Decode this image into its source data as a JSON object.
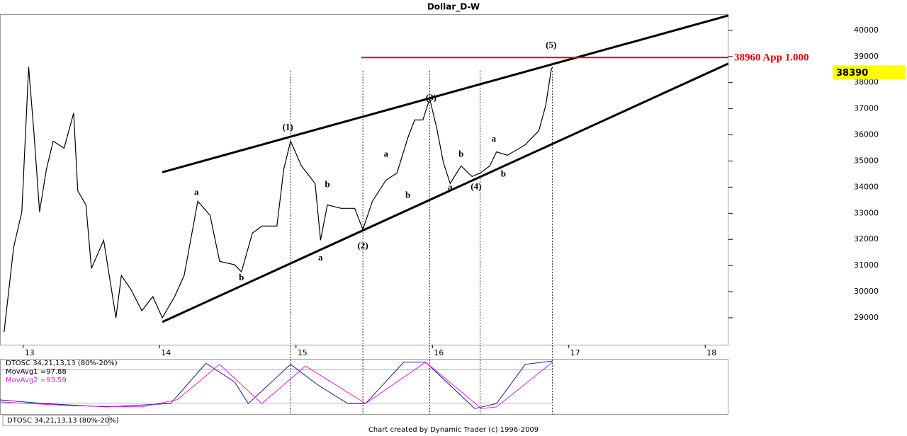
{
  "chart_data": [
    {
      "type": "line",
      "title": "Dollar_D-W",
      "x": [
        12.86,
        12.93,
        12.99,
        13.04,
        13.08,
        13.12,
        13.17,
        13.22,
        13.3,
        13.37,
        13.4,
        13.46,
        13.5,
        13.59,
        13.68,
        13.72,
        13.79,
        13.87,
        13.95,
        14.02,
        14.11,
        14.18,
        14.28,
        14.37,
        14.44,
        14.55,
        14.6,
        14.68,
        14.75,
        14.86,
        14.91,
        14.96,
        15.04,
        15.14,
        15.18,
        15.23,
        15.33,
        15.43,
        15.49,
        15.56,
        15.66,
        15.74,
        15.82,
        15.87,
        15.93,
        15.98,
        16.03,
        16.08,
        16.13,
        16.21,
        16.29,
        16.35,
        16.42,
        16.47,
        16.55,
        16.68,
        16.78,
        16.83,
        16.87,
        16.88
      ],
      "values": [
        28460,
        31700,
        33050,
        38600,
        36000,
        33050,
        34680,
        35760,
        35490,
        36840,
        33860,
        33320,
        30890,
        31970,
        29000,
        30620,
        30080,
        29270,
        29810,
        29000,
        29810,
        30620,
        33460,
        32920,
        31160,
        31030,
        30760,
        32240,
        32510,
        32510,
        34680,
        35760,
        34810,
        34140,
        31970,
        33320,
        33190,
        33190,
        32380,
        33460,
        34270,
        34540,
        35890,
        36570,
        36570,
        37380,
        36300,
        34950,
        34140,
        34810,
        34410,
        34540,
        34810,
        35350,
        35220,
        35620,
        36160,
        37110,
        38460,
        38600
      ],
      "color": "#000000",
      "xlim": [
        12.83,
        18.17
      ],
      "xticks": [
        13,
        14,
        15,
        16,
        17,
        18
      ],
      "ylim": [
        27970,
        40620
      ],
      "yticks": [
        29000,
        30000,
        31000,
        32000,
        33000,
        34000,
        35000,
        36000,
        37000,
        38000,
        39000,
        40000
      ],
      "last_price": 38390,
      "hlines": [
        {
          "value": 38960,
          "label": "38960 App 1.000",
          "color": "#e00000"
        }
      ],
      "trendlines": [
        {
          "x": [
            14.02,
            18.17
          ],
          "y": [
            34570,
            40570
          ]
        },
        {
          "x": [
            14.02,
            18.17
          ],
          "y": [
            28840,
            38730
          ]
        }
      ],
      "time_lines": [
        14.96,
        15.49,
        15.98,
        16.35,
        16.88
      ],
      "annotations": [
        {
          "text": "(1)",
          "x": 14.94,
          "y": 36270
        },
        {
          "text": "(2)",
          "x": 15.49,
          "y": 31730
        },
        {
          "text": "(3)",
          "x": 15.99,
          "y": 37400
        },
        {
          "text": "(4)",
          "x": 16.32,
          "y": 34000
        },
        {
          "text": "(5)",
          "x": 16.87,
          "y": 39410
        },
        {
          "text": "a",
          "x": 14.27,
          "y": 33780
        },
        {
          "text": "b",
          "x": 14.6,
          "y": 30510
        },
        {
          "text": "a",
          "x": 15.18,
          "y": 31270
        },
        {
          "text": "b",
          "x": 15.23,
          "y": 34080
        },
        {
          "text": "a",
          "x": 15.66,
          "y": 35240
        },
        {
          "text": "b",
          "x": 15.82,
          "y": 33670
        },
        {
          "text": "a",
          "x": 16.13,
          "y": 33970
        },
        {
          "text": "b",
          "x": 16.21,
          "y": 35240
        },
        {
          "text": "b",
          "x": 16.52,
          "y": 34490
        },
        {
          "text": "a",
          "x": 16.45,
          "y": 35830
        }
      ]
    },
    {
      "type": "line",
      "title": "DTOSC 34,21,13,13 (80%-20%)",
      "xlim": [
        12.83,
        18.17
      ],
      "ylim": [
        0,
        100
      ],
      "levels": [
        20,
        80
      ],
      "series": [
        {
          "name": "MovAvg1 =97.88",
          "color": "#1a1a8c",
          "x": [
            12.83,
            13.15,
            13.61,
            14.08,
            14.34,
            14.55,
            14.65,
            14.96,
            15.17,
            15.38,
            15.51,
            15.79,
            15.95,
            16.16,
            16.31,
            16.47,
            16.68,
            16.88
          ],
          "values": [
            25.6,
            19,
            13,
            19,
            92,
            58,
            19,
            90,
            51,
            19,
            19,
            94,
            94,
            45,
            10,
            19,
            90,
            96
          ]
        },
        {
          "name": "MovAvg2 =93.59",
          "color": "#e020e0",
          "x": [
            12.83,
            13.35,
            13.87,
            14.13,
            14.44,
            14.75,
            15.07,
            15.51,
            15.95,
            16.36,
            16.47,
            16.88
          ],
          "values": [
            22,
            15,
            13,
            26,
            90,
            19,
            87,
            19,
            94,
            10,
            13,
            94
          ]
        }
      ]
    }
  ],
  "footer_tab": "DTOSC 34,21,13,13 (80%-20%)",
  "credit": "Chart created by Dynamic Trader  (c) 1996-2009"
}
